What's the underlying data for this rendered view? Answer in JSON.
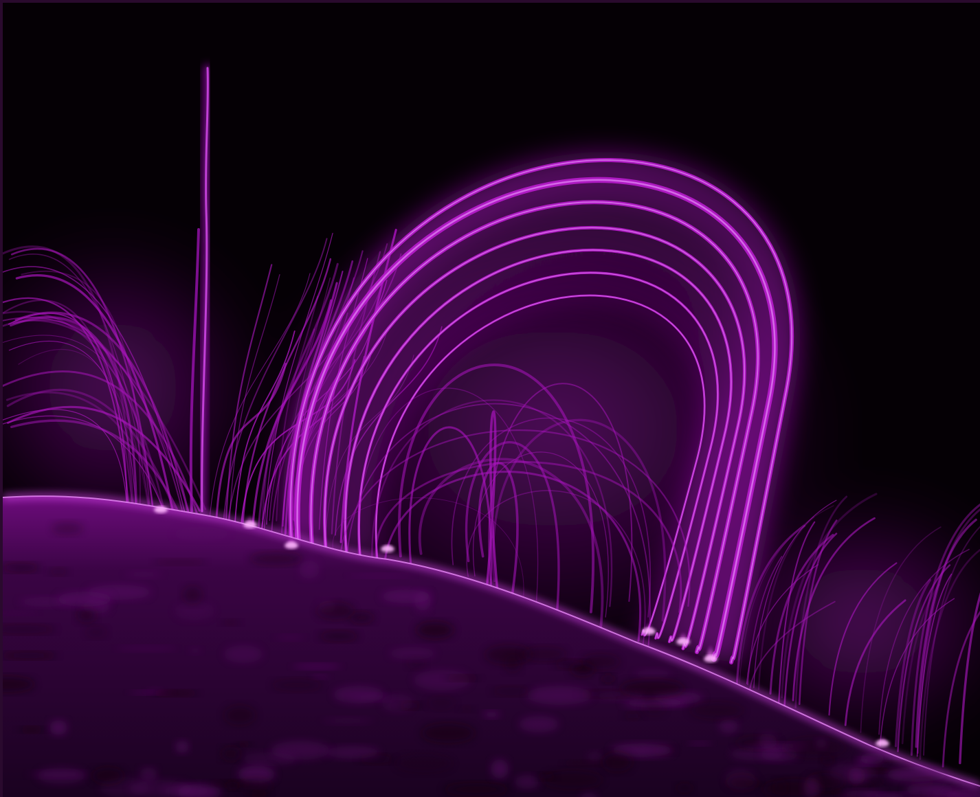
{
  "image": {
    "subject": "solar-coronal-loops",
    "colors": {
      "background": "#050005",
      "glow_bright": "#f08cff",
      "glow_main": "#c21ad6",
      "glow_dim": "#6a0a78",
      "surface_dark": "#2a0330",
      "surface_mid": "#5a0a66"
    }
  }
}
